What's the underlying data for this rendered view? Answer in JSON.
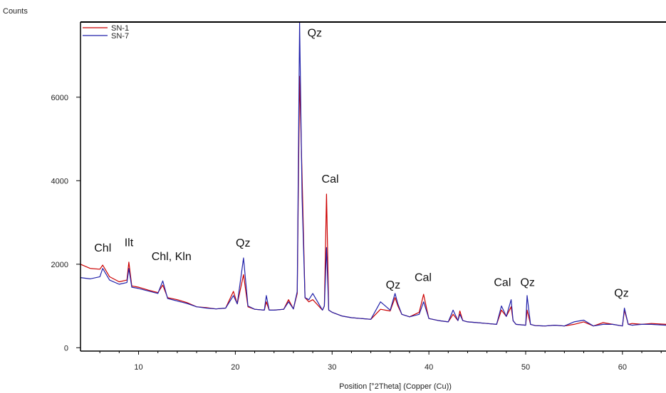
{
  "chart_data": {
    "type": "line",
    "title": "",
    "xlabel": "Position [°2Theta] (Copper (Cu))",
    "ylabel": "Counts",
    "xlim": [
      4,
      64.5
    ],
    "ylim": [
      -80,
      7800
    ],
    "x_ticks": [
      10,
      20,
      30,
      40,
      50,
      60
    ],
    "y_ticks": [
      0,
      2000,
      4000,
      6000
    ],
    "grid": false,
    "legend_position": "top-left",
    "series": [
      {
        "name": "SN-1",
        "color": "#cc0000",
        "x": [
          4,
          5,
          6,
          6.3,
          7,
          8,
          8.8,
          9.0,
          9.3,
          10,
          11,
          12,
          12.5,
          13,
          14,
          15,
          16,
          17,
          18,
          19,
          19.8,
          20.2,
          20.85,
          21.3,
          22,
          23,
          23.2,
          23.5,
          24,
          25,
          25.5,
          26,
          26.4,
          26.64,
          26.9,
          27.2,
          27.6,
          28,
          29,
          29.2,
          29.42,
          29.65,
          30,
          31,
          32,
          33,
          34,
          35,
          36,
          36.5,
          36.8,
          37.2,
          38,
          39,
          39.45,
          39.8,
          40,
          41,
          42,
          42.5,
          43,
          43.2,
          43.5,
          44,
          45,
          46,
          47,
          47.5,
          48,
          48.5,
          48.7,
          49,
          50,
          50.15,
          50.5,
          51,
          52,
          53,
          54,
          55,
          56,
          57,
          58,
          59,
          60,
          60.2,
          60.6,
          61,
          62,
          63,
          64.5
        ],
        "y": [
          2000,
          1900,
          1880,
          1980,
          1700,
          1580,
          1620,
          2050,
          1480,
          1450,
          1380,
          1320,
          1500,
          1200,
          1150,
          1080,
          980,
          960,
          930,
          950,
          1350,
          1050,
          1750,
          980,
          920,
          900,
          1100,
          900,
          900,
          920,
          1150,
          930,
          1300,
          6500,
          4100,
          1200,
          1100,
          1150,
          900,
          1000,
          3680,
          900,
          850,
          760,
          720,
          700,
          680,
          920,
          880,
          1200,
          1000,
          800,
          740,
          850,
          1280,
          900,
          700,
          650,
          620,
          800,
          650,
          880,
          650,
          620,
          600,
          580,
          560,
          900,
          750,
          980,
          650,
          560,
          540,
          900,
          560,
          530,
          520,
          540,
          520,
          560,
          620,
          520,
          600,
          560,
          520,
          900,
          560,
          580,
          560,
          580,
          560
        ]
      },
      {
        "name": "SN-7",
        "color": "#2222aa",
        "x": [
          4,
          5,
          6,
          6.3,
          7,
          8,
          8.8,
          9.0,
          9.3,
          10,
          11,
          12,
          12.5,
          13,
          14,
          15,
          16,
          17,
          18,
          19,
          19.8,
          20.2,
          20.85,
          21.3,
          22,
          23,
          23.2,
          23.5,
          24,
          25,
          25.5,
          26,
          26.4,
          26.64,
          26.9,
          27.2,
          27.6,
          28,
          29,
          29.2,
          29.42,
          29.65,
          30,
          31,
          32,
          33,
          34,
          35,
          36,
          36.5,
          36.8,
          37.2,
          38,
          39,
          39.45,
          39.8,
          40,
          41,
          42,
          42.5,
          43,
          43.2,
          43.5,
          44,
          45,
          46,
          47,
          47.5,
          48,
          48.5,
          48.7,
          49,
          50,
          50.15,
          50.5,
          51,
          52,
          53,
          54,
          55,
          56,
          57,
          58,
          59,
          60,
          60.2,
          60.6,
          61,
          62,
          63,
          64.5
        ],
        "y": [
          1680,
          1650,
          1700,
          1900,
          1620,
          1520,
          1560,
          1900,
          1450,
          1420,
          1360,
          1300,
          1600,
          1180,
          1120,
          1060,
          980,
          950,
          930,
          950,
          1250,
          1050,
          2150,
          1000,
          920,
          900,
          1250,
          900,
          900,
          920,
          1100,
          930,
          1350,
          7800,
          3600,
          1200,
          1150,
          1300,
          900,
          1000,
          2400,
          900,
          850,
          760,
          720,
          700,
          680,
          1100,
          900,
          1300,
          1050,
          800,
          740,
          800,
          1100,
          850,
          700,
          650,
          620,
          900,
          650,
          800,
          650,
          620,
          600,
          580,
          560,
          1000,
          750,
          1150,
          650,
          560,
          540,
          1250,
          560,
          530,
          520,
          540,
          520,
          620,
          660,
          520,
          560,
          560,
          520,
          950,
          560,
          540,
          560,
          560,
          540
        ]
      }
    ],
    "annotations": [
      {
        "text": "Chl",
        "x": 6.3,
        "y": 2300
      },
      {
        "text": "Ilt",
        "x": 9.0,
        "y": 2430
      },
      {
        "text": "Chl, Kln",
        "x": 13.4,
        "y": 2100
      },
      {
        "text": "Qz",
        "x": 20.8,
        "y": 2420
      },
      {
        "text": "Qz",
        "x": 28.2,
        "y": 7450
      },
      {
        "text": "Cal",
        "x": 29.8,
        "y": 3950
      },
      {
        "text": "Qz",
        "x": 36.3,
        "y": 1420
      },
      {
        "text": "Cal",
        "x": 39.4,
        "y": 1600
      },
      {
        "text": "Cal",
        "x": 47.6,
        "y": 1480
      },
      {
        "text": "Qz",
        "x": 50.2,
        "y": 1480
      },
      {
        "text": "Qz",
        "x": 59.9,
        "y": 1220
      }
    ]
  }
}
